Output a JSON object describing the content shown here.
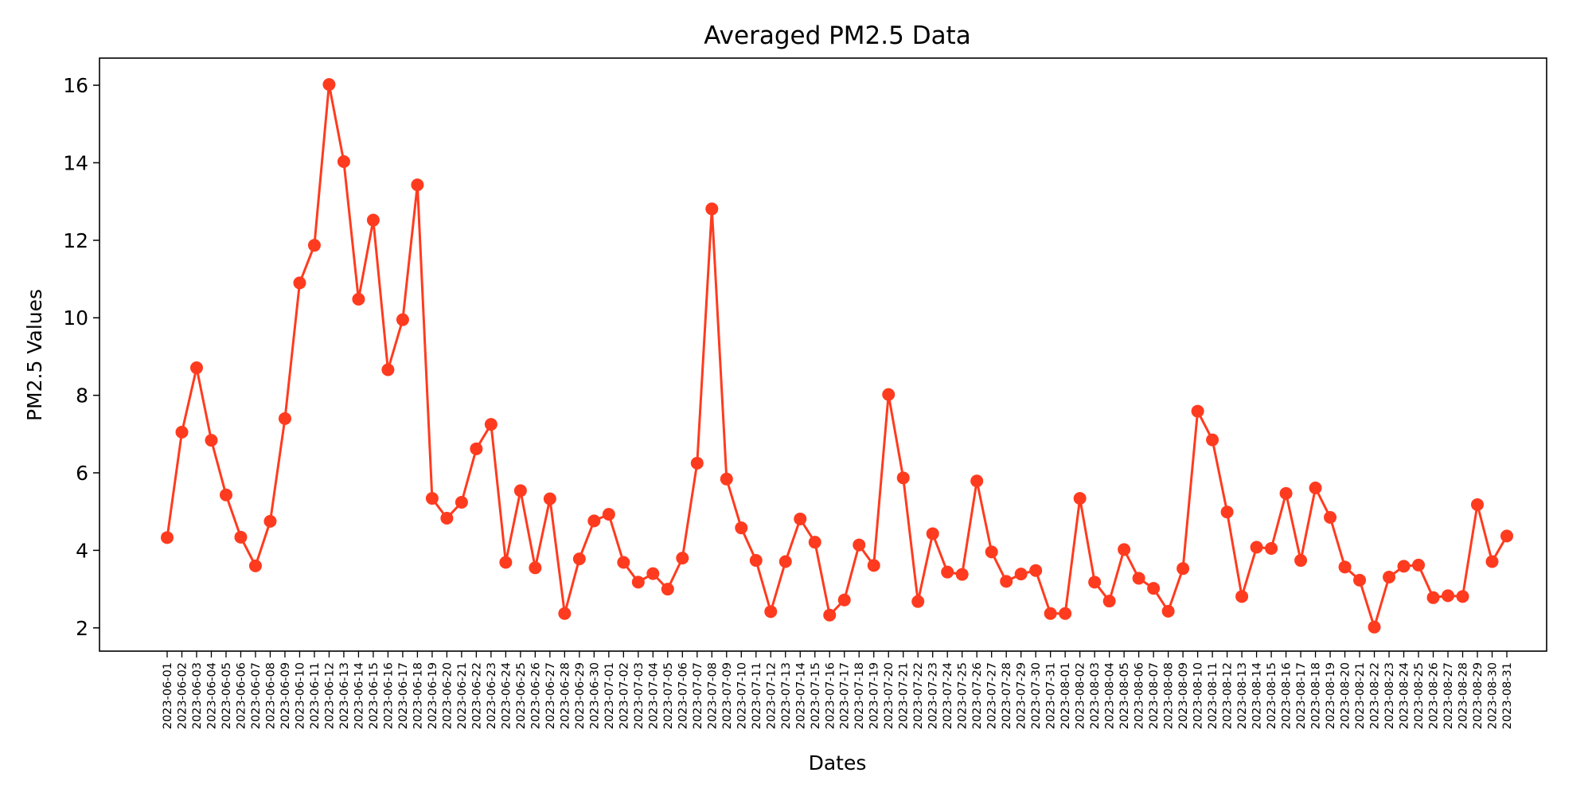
{
  "chart_data": {
    "type": "line",
    "title": "Averaged PM2.5 Data",
    "xlabel": "Dates",
    "ylabel": "PM2.5 Values",
    "ylim": [
      1.4,
      16.7
    ],
    "yticks": [
      2,
      4,
      6,
      8,
      10,
      12,
      14,
      16
    ],
    "grid": false,
    "color": "#ff3b1f",
    "categories": [
      "2023-06-01",
      "2023-06-02",
      "2023-06-03",
      "2023-06-04",
      "2023-06-05",
      "2023-06-06",
      "2023-06-07",
      "2023-06-08",
      "2023-06-09",
      "2023-06-10",
      "2023-06-11",
      "2023-06-12",
      "2023-06-13",
      "2023-06-14",
      "2023-06-15",
      "2023-06-16",
      "2023-06-17",
      "2023-06-18",
      "2023-06-19",
      "2023-06-20",
      "2023-06-21",
      "2023-06-22",
      "2023-06-23",
      "2023-06-24",
      "2023-06-25",
      "2023-06-26",
      "2023-06-27",
      "2023-06-28",
      "2023-06-29",
      "2023-06-30",
      "2023-07-01",
      "2023-07-02",
      "2023-07-03",
      "2023-07-04",
      "2023-07-05",
      "2023-07-06",
      "2023-07-07",
      "2023-07-08",
      "2023-07-09",
      "2023-07-10",
      "2023-07-11",
      "2023-07-12",
      "2023-07-13",
      "2023-07-14",
      "2023-07-15",
      "2023-07-16",
      "2023-07-17",
      "2023-07-18",
      "2023-07-19",
      "2023-07-20",
      "2023-07-21",
      "2023-07-22",
      "2023-07-23",
      "2023-07-24",
      "2023-07-25",
      "2023-07-26",
      "2023-07-27",
      "2023-07-28",
      "2023-07-29",
      "2023-07-30",
      "2023-07-31",
      "2023-08-01",
      "2023-08-02",
      "2023-08-03",
      "2023-08-04",
      "2023-08-05",
      "2023-08-06",
      "2023-08-07",
      "2023-08-08",
      "2023-08-09",
      "2023-08-10",
      "2023-08-11",
      "2023-08-12",
      "2023-08-13",
      "2023-08-14",
      "2023-08-15",
      "2023-08-16",
      "2023-08-17",
      "2023-08-18",
      "2023-08-19",
      "2023-08-20",
      "2023-08-21",
      "2023-08-22",
      "2023-08-23",
      "2023-08-24",
      "2023-08-25",
      "2023-08-26",
      "2023-08-27",
      "2023-08-28",
      "2023-08-29",
      "2023-08-30",
      "2023-08-31"
    ],
    "values": [
      4.33,
      7.05,
      8.71,
      6.84,
      5.43,
      4.34,
      3.6,
      4.75,
      7.4,
      10.9,
      11.87,
      16.02,
      14.03,
      10.48,
      12.52,
      8.66,
      9.95,
      13.43,
      5.34,
      4.83,
      5.24,
      6.62,
      7.25,
      3.69,
      5.54,
      3.55,
      5.33,
      2.37,
      3.78,
      4.76,
      4.93,
      3.69,
      3.18,
      3.4,
      3.0,
      3.8,
      6.25,
      12.81,
      5.84,
      4.58,
      3.74,
      2.42,
      3.71,
      4.81,
      4.21,
      2.33,
      2.72,
      4.14,
      3.61,
      8.02,
      5.87,
      2.68,
      4.43,
      3.44,
      3.38,
      5.79,
      3.96,
      3.2,
      3.39,
      3.48,
      2.37,
      2.37,
      5.34,
      3.18,
      2.69,
      4.02,
      3.28,
      3.02,
      2.43,
      3.53,
      7.59,
      6.85,
      4.99,
      2.81,
      4.08,
      4.05,
      5.47,
      3.74,
      5.61,
      4.85,
      3.57,
      3.23,
      2.02,
      3.31,
      3.59,
      3.62,
      2.78,
      2.83,
      2.81,
      5.18,
      3.71,
      4.37
    ]
  }
}
